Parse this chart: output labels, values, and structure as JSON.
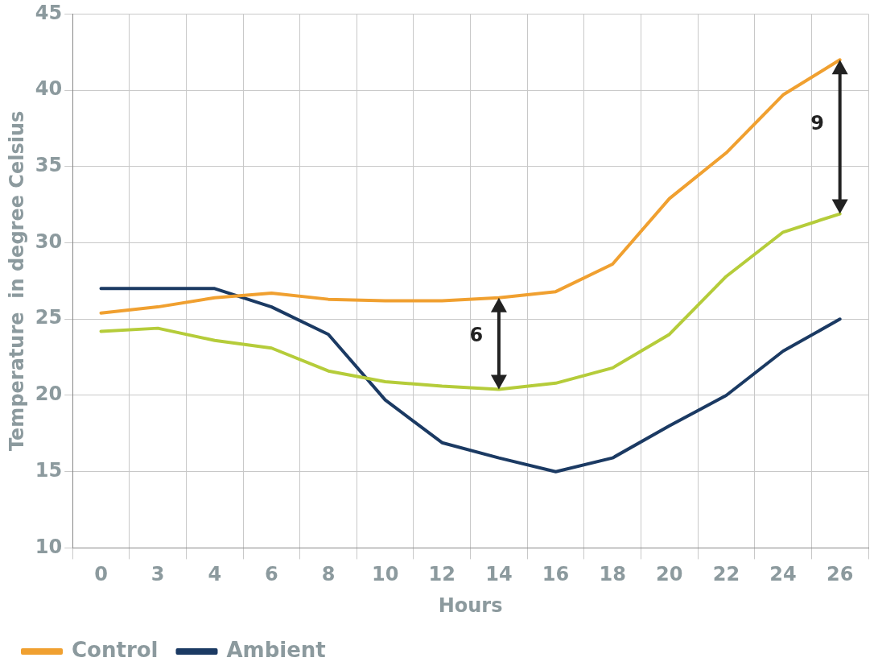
{
  "chart_data": {
    "type": "line",
    "xlabel": "Hours",
    "ylabel": "Temperature  in degree Celsius",
    "categories": [
      "0",
      "3",
      "4",
      "6",
      "8",
      "10",
      "12",
      "14",
      "16",
      "18",
      "20",
      "22",
      "24",
      "26"
    ],
    "series": [
      {
        "name": "Control",
        "color": "#f0a030",
        "values": [
          25.4,
          25.8,
          26.4,
          26.7,
          26.3,
          26.2,
          26.2,
          26.4,
          26.8,
          28.6,
          32.9,
          35.9,
          39.7,
          42
        ]
      },
      {
        "color": "#b5cc3a",
        "values": [
          24.2,
          24.4,
          23.6,
          23.1,
          21.6,
          20.9,
          20.6,
          20.4,
          20.8,
          21.8,
          24.0,
          27.8,
          30.7,
          31.9
        ]
      },
      {
        "name": "Ambient",
        "color": "#1b3a63",
        "values": [
          27,
          27,
          27,
          25.8,
          24.0,
          19.7,
          16.9,
          15.9,
          15.0,
          15.9,
          18.0,
          20.0,
          22.9,
          25.0
        ]
      }
    ],
    "ylim": [
      10,
      45
    ],
    "yticks": [
      10,
      15,
      20,
      25,
      30,
      35,
      40,
      45
    ],
    "grid": true,
    "legend": "bottom left",
    "marker": "none",
    "line_style": "solid",
    "annotations": [
      {
        "text": "6",
        "x": "14",
        "y": 26.4
      },
      {
        "text": "9",
        "x": "26",
        "y": 42
      }
    ]
  }
}
